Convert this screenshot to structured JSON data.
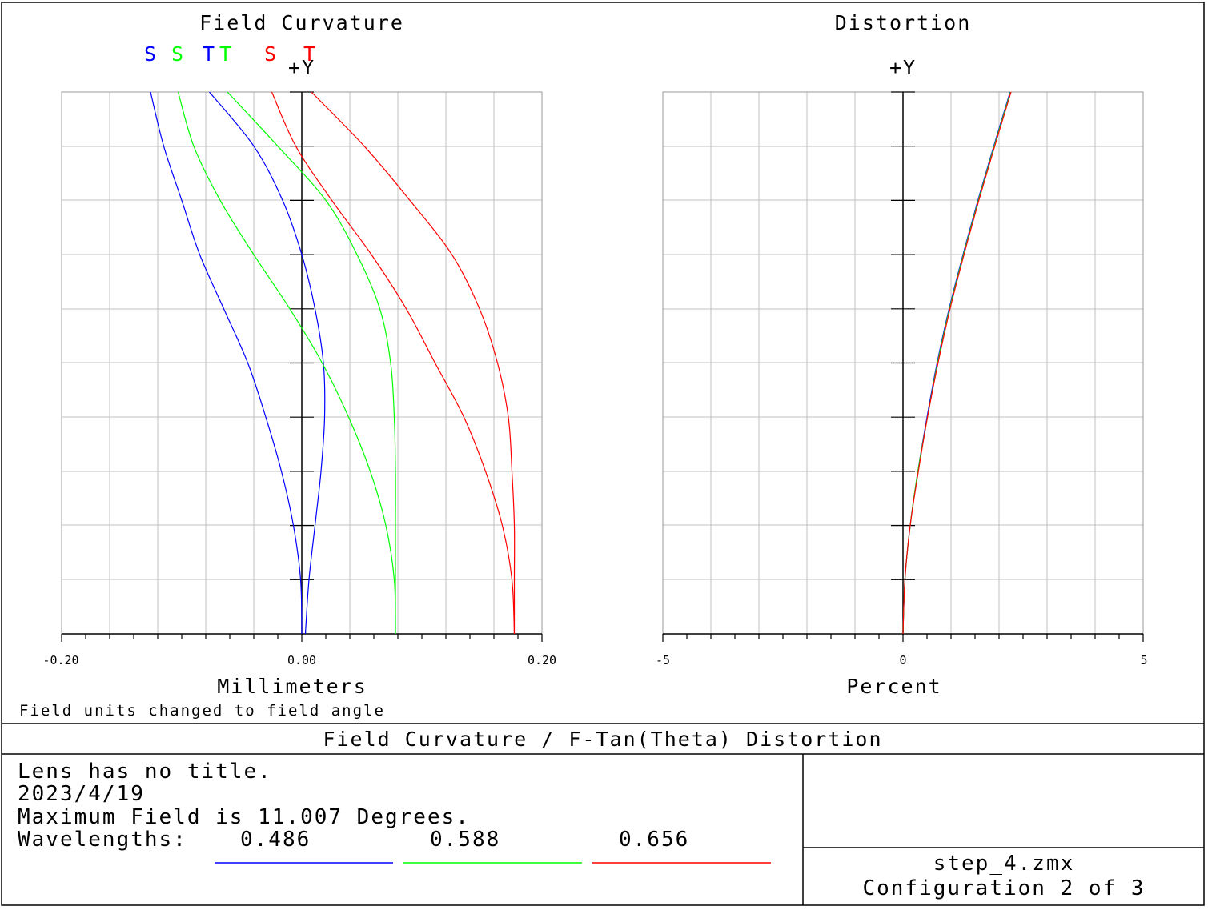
{
  "charts": {
    "field_curvature": {
      "title": "Field Curvature",
      "legend": [
        {
          "text": "S",
          "color": "#0000ff"
        },
        {
          "text": "S",
          "color": "#00ff00"
        },
        {
          "text": "T",
          "color": "#0000ff"
        },
        {
          "text": "T",
          "color": "#00ff00"
        },
        {
          "text": "S",
          "color": "#ff0000"
        },
        {
          "text": "T",
          "color": "#ff0000"
        }
      ],
      "yaxis_label": "+Y",
      "xlabel": "Millimeters",
      "x_ticks": [
        "-0.20",
        "0.00",
        "0.20"
      ],
      "note": "Field units changed to field angle"
    },
    "distortion": {
      "title": "Distortion",
      "yaxis_label": "+Y",
      "xlabel": "Percent",
      "x_ticks": [
        "-5",
        "0",
        "5"
      ]
    }
  },
  "footer": {
    "title": "Field Curvature / F-Tan(Theta) Distortion",
    "lens_title": "Lens has no title.",
    "date": "2023/4/19",
    "max_field": "Maximum Field is 11.007 Degrees.",
    "wavelengths_label": "Wavelengths:",
    "wavelengths": [
      {
        "value": "0.486",
        "color": "#0000ff"
      },
      {
        "value": "0.588",
        "color": "#00ff00"
      },
      {
        "value": "0.656",
        "color": "#ff0000"
      }
    ],
    "filename": "step_4.zmx",
    "configuration": "Configuration 2 of 3"
  },
  "chart_data": [
    {
      "type": "line",
      "title": "Field Curvature",
      "xlabel": "Millimeters",
      "ylabel": "+Y",
      "xlim": [
        -0.2,
        0.2
      ],
      "ylim": [
        0,
        1
      ],
      "y_unit": "relative field (0 to max field 11.007 degrees)",
      "grid": true,
      "y": [
        0,
        0.1,
        0.2,
        0.3,
        0.4,
        0.5,
        0.6,
        0.7,
        0.8,
        0.9,
        1.0
      ],
      "series": [
        {
          "name": "S 0.486",
          "color": "#0000ff",
          "x": [
            0.0,
            -0.001,
            -0.007,
            -0.017,
            -0.03,
            -0.045,
            -0.065,
            -0.085,
            -0.1,
            -0.115,
            -0.126
          ]
        },
        {
          "name": "T 0.486",
          "color": "#0000ff",
          "x": [
            0.003,
            0.006,
            0.011,
            0.016,
            0.019,
            0.018,
            0.011,
            0.0,
            -0.016,
            -0.04,
            -0.077
          ]
        },
        {
          "name": "S 0.588",
          "color": "#00ff00",
          "x": [
            0.078,
            0.077,
            0.07,
            0.057,
            0.039,
            0.017,
            -0.01,
            -0.04,
            -0.068,
            -0.09,
            -0.103
          ]
        },
        {
          "name": "T 0.588",
          "color": "#00ff00",
          "x": [
            0.078,
            0.078,
            0.078,
            0.078,
            0.077,
            0.074,
            0.065,
            0.046,
            0.02,
            -0.02,
            -0.062
          ]
        },
        {
          "name": "S 0.656",
          "color": "#ff0000",
          "x": [
            0.177,
            0.175,
            0.167,
            0.153,
            0.135,
            0.111,
            0.087,
            0.058,
            0.025,
            -0.005,
            -0.025
          ]
        },
        {
          "name": "T 0.656",
          "color": "#ff0000",
          "x": [
            0.177,
            0.177,
            0.177,
            0.175,
            0.172,
            0.163,
            0.148,
            0.125,
            0.09,
            0.052,
            0.008
          ]
        }
      ]
    },
    {
      "type": "line",
      "title": "Distortion",
      "xlabel": "Percent",
      "ylabel": "+Y",
      "xlim": [
        -5,
        5
      ],
      "ylim": [
        0,
        1
      ],
      "y_unit": "relative field (0 to max field 11.007 degrees)",
      "grid": true,
      "y": [
        0,
        0.1,
        0.2,
        0.3,
        0.4,
        0.5,
        0.6,
        0.7,
        0.8,
        0.9,
        1.0
      ],
      "series": [
        {
          "name": "0.486",
          "color": "#0000ff",
          "x": [
            0.0,
            0.04,
            0.15,
            0.31,
            0.5,
            0.71,
            0.96,
            1.25,
            1.56,
            1.89,
            2.23
          ]
        },
        {
          "name": "0.588",
          "color": "#00ff00",
          "x": [
            0.0,
            0.04,
            0.15,
            0.31,
            0.51,
            0.72,
            0.97,
            1.26,
            1.57,
            1.9,
            2.24
          ]
        },
        {
          "name": "0.656",
          "color": "#ff0000",
          "x": [
            0.0,
            0.04,
            0.15,
            0.32,
            0.51,
            0.73,
            0.98,
            1.27,
            1.58,
            1.91,
            2.25
          ]
        }
      ]
    }
  ]
}
